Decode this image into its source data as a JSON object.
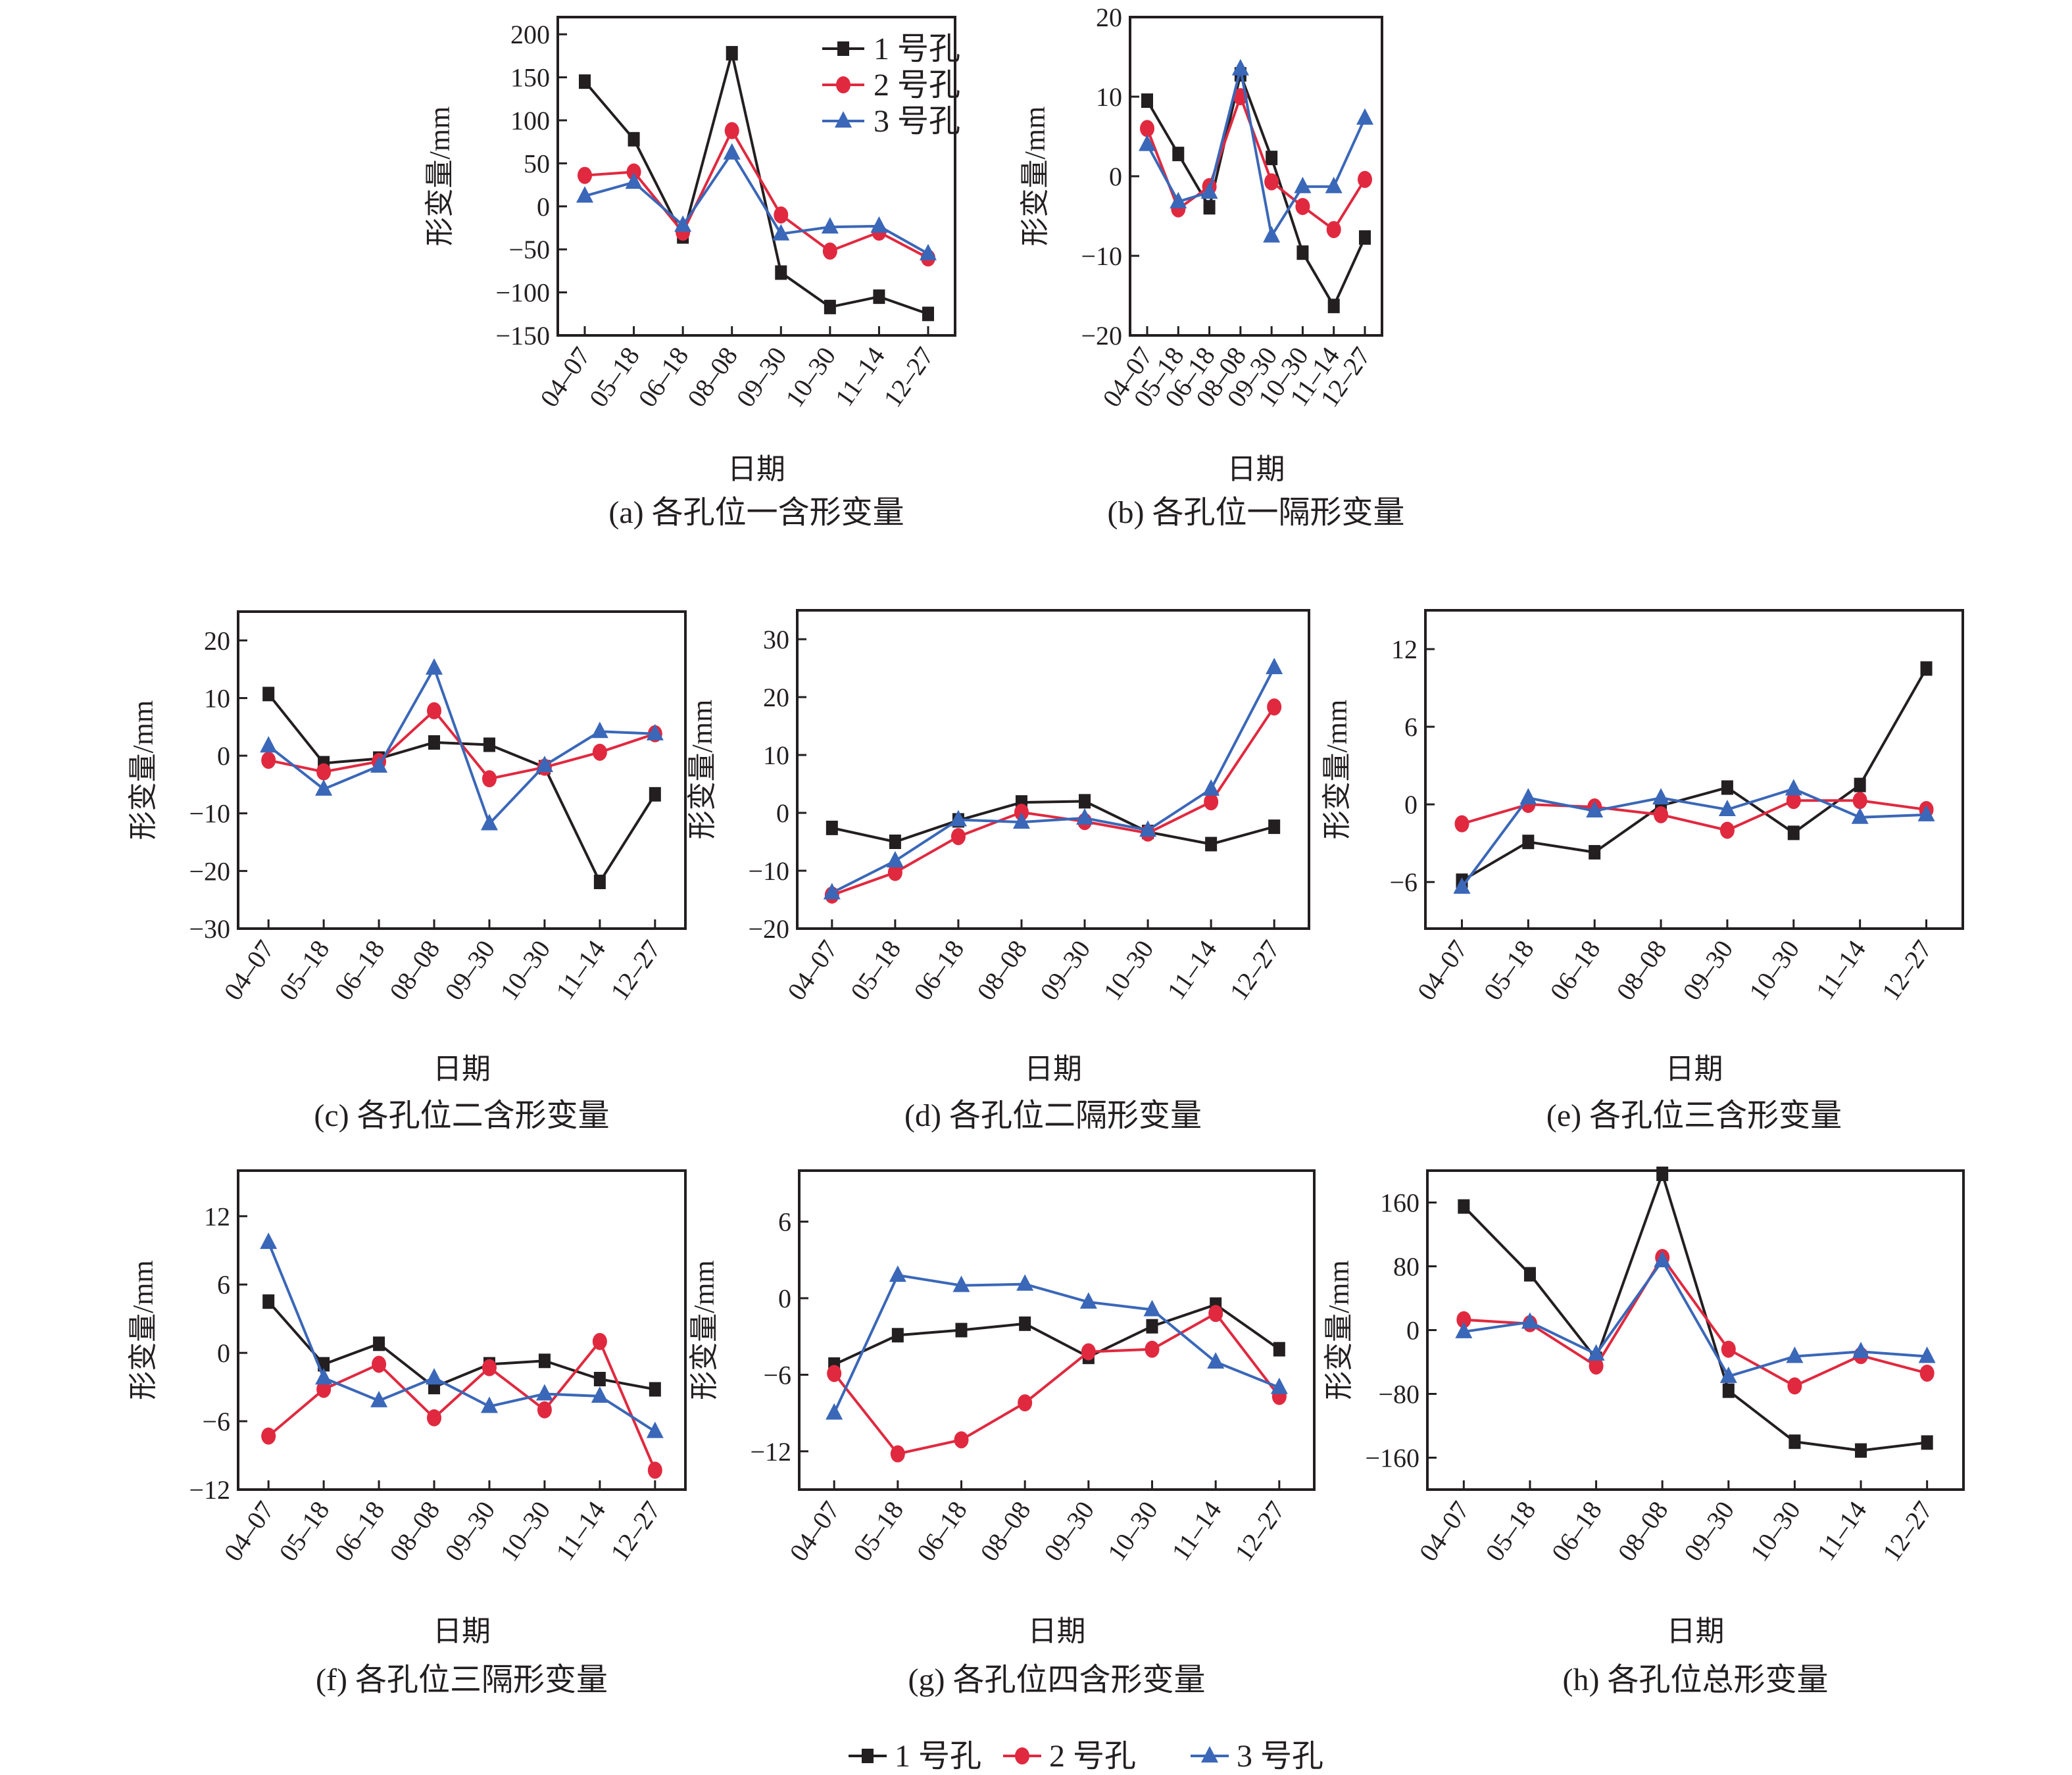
{
  "figure": {
    "bottom_legend": [
      {
        "label": "1 号孔",
        "series": "s1"
      },
      {
        "label": "2 号孔",
        "series": "s2"
      },
      {
        "label": "3 号孔",
        "series": "s3"
      }
    ]
  },
  "series_styles": {
    "s1": {
      "name": "1 号孔",
      "color": "#231f20",
      "marker": "square"
    },
    "s2": {
      "name": "2 号孔",
      "color": "#e0293f",
      "marker": "circle"
    },
    "s3": {
      "name": "3 号孔",
      "color": "#3a67b8",
      "marker": "triangle"
    }
  },
  "chart_data": [
    {
      "id": "a",
      "type": "line",
      "title": "(a) 各孔位一含形变量",
      "xlabel": "日期",
      "ylabel": "形变量/mm",
      "categories": [
        "04–07",
        "05–18",
        "06–18",
        "08–08",
        "09–30",
        "10–30",
        "11–14",
        "12–27"
      ],
      "ylim": [
        -150,
        220
      ],
      "yticks": [
        200,
        150,
        100,
        50,
        0,
        -50,
        -100,
        -150
      ],
      "ytick_labels": [
        "200",
        "150",
        "100",
        "50",
        "0",
        "−50",
        "−100",
        "−150"
      ],
      "legend": "top-right",
      "legend_entries": [
        "1 号孔",
        "2 号孔",
        "3 号孔"
      ],
      "series": [
        {
          "name": "1 号孔",
          "key": "s1",
          "values": [
            145,
            78,
            -35,
            178,
            -77,
            -117,
            -105,
            -125
          ]
        },
        {
          "name": "2 号孔",
          "key": "s2",
          "values": [
            36,
            40,
            -30,
            88,
            -10,
            -52,
            -30,
            -60
          ]
        },
        {
          "name": "3 号孔",
          "key": "s3",
          "values": [
            12,
            28,
            -22,
            62,
            -32,
            -24,
            -23,
            -55
          ]
        }
      ]
    },
    {
      "id": "b",
      "type": "line",
      "title": "(b) 各孔位一隔形变量",
      "xlabel": "日期",
      "ylabel": "形变量/mm",
      "categories": [
        "04–07",
        "05–18",
        "06–18",
        "08–08",
        "09–30",
        "10–30",
        "11–14",
        "12–27"
      ],
      "ylim": [
        -20,
        20
      ],
      "yticks": [
        20,
        10,
        0,
        -10,
        -20
      ],
      "ytick_labels": [
        "20",
        "10",
        "0",
        "−10",
        "−20"
      ],
      "series": [
        {
          "name": "1 号孔",
          "key": "s1",
          "values": [
            9.5,
            2.8,
            -3.9,
            12.8,
            2.3,
            -9.6,
            -16.3,
            -7.7
          ]
        },
        {
          "name": "2 号孔",
          "key": "s2",
          "values": [
            6.0,
            -4.1,
            -1.3,
            10.0,
            -0.7,
            -3.8,
            -6.7,
            -0.4
          ]
        },
        {
          "name": "3 号孔",
          "key": "s3",
          "values": [
            4.0,
            -3.2,
            -2.0,
            13.5,
            -7.5,
            -1.3,
            -1.3,
            7.3
          ]
        }
      ]
    },
    {
      "id": "c",
      "type": "line",
      "title": "(c) 各孔位二含形变量",
      "xlabel": "日期",
      "ylabel": "形变量/mm",
      "categories": [
        "04–07",
        "05–18",
        "06–18",
        "08–08",
        "09–30",
        "10–30",
        "11–14",
        "12–27"
      ],
      "ylim": [
        -30,
        25
      ],
      "yticks": [
        20,
        10,
        0,
        -10,
        -20,
        -30
      ],
      "ytick_labels": [
        "20",
        "10",
        "0",
        "−10",
        "−20",
        "−30"
      ],
      "series": [
        {
          "name": "1 号孔",
          "key": "s1",
          "values": [
            10.7,
            -1.3,
            -0.5,
            2.3,
            1.9,
            -2.0,
            -21.9,
            -6.7
          ]
        },
        {
          "name": "2 号孔",
          "key": "s2",
          "values": [
            -0.8,
            -2.8,
            -1.0,
            7.8,
            -4.0,
            -2.0,
            0.6,
            3.8
          ]
        },
        {
          "name": "3 号孔",
          "key": "s3",
          "values": [
            1.7,
            -5.8,
            -1.8,
            15.2,
            -11.8,
            -1.7,
            4.2,
            3.8
          ]
        }
      ]
    },
    {
      "id": "d",
      "type": "line",
      "title": "(d) 各孔位二隔形变量",
      "xlabel": "日期",
      "ylabel": "形变量/mm",
      "categories": [
        "04–07",
        "05–18",
        "06–18",
        "08–08",
        "09–30",
        "10–30",
        "11–14",
        "12–27"
      ],
      "ylim": [
        -20,
        35
      ],
      "yticks": [
        30,
        20,
        10,
        0,
        -10,
        -20
      ],
      "ytick_labels": [
        "30",
        "20",
        "10",
        "0",
        "−10",
        "−20"
      ],
      "series": [
        {
          "name": "1 号孔",
          "key": "s1",
          "values": [
            -2.6,
            -5.0,
            -1.3,
            1.8,
            2.0,
            -3.3,
            -5.4,
            -2.4
          ]
        },
        {
          "name": "2 号孔",
          "key": "s2",
          "values": [
            -14.2,
            -10.3,
            -4.1,
            0.1,
            -1.5,
            -3.5,
            1.9,
            18.3
          ]
        },
        {
          "name": "3 号孔",
          "key": "s3",
          "values": [
            -13.8,
            -8.3,
            -1.2,
            -1.6,
            -0.9,
            -3.0,
            4.1,
            25.1
          ]
        }
      ]
    },
    {
      "id": "e",
      "type": "line",
      "title": "(e) 各孔位三含形变量",
      "xlabel": "日期",
      "ylabel": "形变量/mm",
      "categories": [
        "04–07",
        "05–18",
        "06–18",
        "08–08",
        "09–30",
        "10–30",
        "11–14",
        "12–27"
      ],
      "ylim": [
        -9.6,
        15
      ],
      "yticks": [
        12,
        6,
        0,
        -6
      ],
      "ytick_labels": [
        "12",
        "6",
        "0",
        "−6"
      ],
      "series": [
        {
          "name": "1 号孔",
          "key": "s1",
          "values": [
            -5.9,
            -2.9,
            -3.7,
            -0.1,
            1.3,
            -2.2,
            1.5,
            10.5
          ]
        },
        {
          "name": "2 号孔",
          "key": "s2",
          "values": [
            -1.5,
            0.0,
            -0.2,
            -0.8,
            -2.0,
            0.3,
            0.3,
            -0.4
          ]
        },
        {
          "name": "3 号孔",
          "key": "s3",
          "values": [
            -6.4,
            0.5,
            -0.5,
            0.5,
            -0.4,
            1.2,
            -1.0,
            -0.8
          ]
        }
      ]
    },
    {
      "id": "f",
      "type": "line",
      "title": "(f) 各孔位三隔形变量",
      "xlabel": "日期",
      "ylabel": "形变量/mm",
      "categories": [
        "04–07",
        "05–18",
        "06–18",
        "08–08",
        "09–30",
        "10–30",
        "11–14",
        "12–27"
      ],
      "ylim": [
        -12,
        16
      ],
      "yticks": [
        12,
        6,
        0,
        -6,
        -12
      ],
      "ytick_labels": [
        "12",
        "6",
        "0",
        "−6",
        "−12"
      ],
      "series": [
        {
          "name": "1 号孔",
          "key": "s1",
          "values": [
            4.5,
            -1.0,
            0.8,
            -3.0,
            -1.0,
            -0.7,
            -2.3,
            -3.2
          ]
        },
        {
          "name": "2 号孔",
          "key": "s2",
          "values": [
            -7.3,
            -3.2,
            -1.0,
            -5.7,
            -1.3,
            -5.0,
            1.0,
            -10.3
          ]
        },
        {
          "name": "3 号孔",
          "key": "s3",
          "values": [
            9.7,
            -2.2,
            -4.2,
            -2.2,
            -4.7,
            -3.6,
            -3.8,
            -6.9
          ]
        }
      ]
    },
    {
      "id": "g",
      "type": "line",
      "title": "(g) 各孔位四含形变量",
      "xlabel": "日期",
      "ylabel": "形变量/mm",
      "categories": [
        "04–07",
        "05–18",
        "06–18",
        "08–08",
        "09–30",
        "10–30",
        "11–14",
        "12–27"
      ],
      "ylim": [
        -15,
        10
      ],
      "yticks": [
        6,
        0,
        -6,
        -12
      ],
      "ytick_labels": [
        "6",
        "0",
        "−6",
        "−12"
      ],
      "series": [
        {
          "name": "1 号孔",
          "key": "s1",
          "values": [
            -5.2,
            -2.9,
            -2.5,
            -2.0,
            -4.6,
            -2.2,
            -0.5,
            -4.0
          ]
        },
        {
          "name": "2 号孔",
          "key": "s2",
          "values": [
            -5.9,
            -12.2,
            -11.1,
            -8.2,
            -4.2,
            -4.0,
            -1.2,
            -7.7
          ]
        },
        {
          "name": "3 号孔",
          "key": "s3",
          "values": [
            -9.0,
            1.8,
            1.0,
            1.1,
            -0.3,
            -0.9,
            -5.0,
            -7.0
          ]
        }
      ]
    },
    {
      "id": "h",
      "type": "line",
      "title": "(h) 各孔位总形变量",
      "xlabel": "日期",
      "ylabel": "形变量/mm",
      "categories": [
        "04–07",
        "05–18",
        "06–18",
        "08–08",
        "09–30",
        "10–30",
        "11–14",
        "12–27"
      ],
      "ylim": [
        -200,
        200
      ],
      "yticks": [
        160,
        80,
        0,
        -80,
        -160
      ],
      "ytick_labels": [
        "160",
        "80",
        "0",
        "−80",
        "−160"
      ],
      "series": [
        {
          "name": "1 号孔",
          "key": "s1",
          "values": [
            155,
            70,
            -36,
            196,
            -76,
            -140,
            -151,
            -141
          ]
        },
        {
          "name": "2 号孔",
          "key": "s2",
          "values": [
            13,
            8,
            -45,
            91,
            -24,
            -70,
            -32,
            -54
          ]
        },
        {
          "name": "3 号孔",
          "key": "s3",
          "values": [
            -2,
            10,
            -30,
            87,
            -58,
            -33,
            -27,
            -33
          ]
        }
      ]
    }
  ]
}
